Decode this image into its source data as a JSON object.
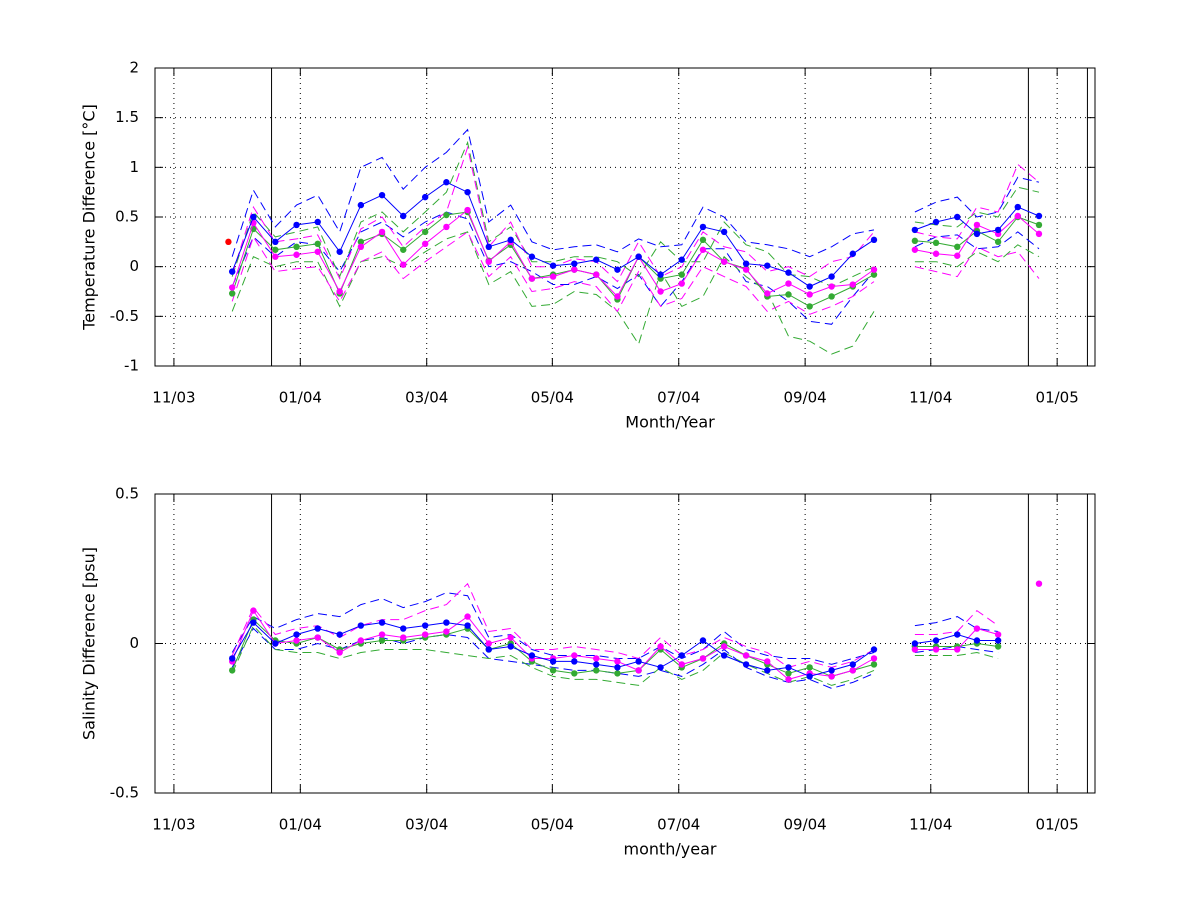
{
  "chart_data": [
    {
      "type": "line",
      "ylabel": "Temperature Difference [°C]",
      "xlabel": "Month/Year",
      "xlim": [
        2003.808,
        2005.05
      ],
      "ylim": [
        -1,
        2
      ],
      "xticks": [
        {
          "value": 2003.833,
          "label": "11/03"
        },
        {
          "value": 2004.0,
          "label": "01/04"
        },
        {
          "value": 2004.167,
          "label": "03/04"
        },
        {
          "value": 2004.333,
          "label": "05/04"
        },
        {
          "value": 2004.5,
          "label": "07/04"
        },
        {
          "value": 2004.667,
          "label": "09/04"
        },
        {
          "value": 2004.833,
          "label": "11/04"
        },
        {
          "value": 2005.0,
          "label": "01/05"
        }
      ],
      "yticks": [
        -1,
        -0.5,
        0,
        0.5,
        1,
        1.5,
        2
      ],
      "grid": true,
      "vlines": [
        2003.962,
        2004.962,
        2005.04
      ],
      "x": [
        2003.91,
        2003.938,
        2003.967,
        2003.995,
        2004.023,
        2004.052,
        2004.08,
        2004.108,
        2004.136,
        2004.165,
        2004.193,
        2004.221,
        2004.249,
        2004.278,
        2004.306,
        2004.334,
        2004.362,
        2004.391,
        2004.419,
        2004.447,
        2004.476,
        2004.504,
        2004.532,
        2004.56,
        2004.589,
        2004.617,
        2004.645,
        2004.673,
        2004.702,
        2004.73,
        2004.758,
        2004.786,
        2004.812,
        2004.84,
        2004.868,
        2004.894,
        2004.922,
        2004.948,
        2004.976
      ],
      "series": [
        {
          "color": "#0000ff",
          "dash": true,
          "values": [
            0.1,
            0.77,
            0.4,
            0.62,
            0.72,
            0.35,
            1.0,
            1.1,
            0.78,
            1.0,
            1.15,
            1.38,
            0.45,
            0.62,
            0.25,
            0.17,
            0.2,
            0.22,
            0.15,
            0.28,
            0.2,
            0.22,
            0.6,
            0.5,
            0.25,
            0.22,
            0.18,
            0.1,
            0.2,
            0.33,
            0.37,
            null,
            0.55,
            0.65,
            0.7,
            0.5,
            0.55,
            0.9,
            0.85
          ]
        },
        {
          "color": "#0000ff",
          "dash": true,
          "values": [
            -0.2,
            0.3,
            0.1,
            0.25,
            0.22,
            -0.05,
            0.35,
            0.45,
            0.3,
            0.45,
            0.55,
            0.48,
            0.0,
            0.05,
            -0.05,
            -0.18,
            -0.18,
            -0.1,
            -0.22,
            -0.08,
            -0.4,
            -0.15,
            0.18,
            0.18,
            -0.15,
            -0.2,
            -0.35,
            -0.55,
            -0.58,
            -0.3,
            -0.05,
            null,
            0.2,
            0.3,
            0.32,
            0.18,
            0.2,
            0.35,
            0.18
          ]
        },
        {
          "color": "#33aa33",
          "dash": true,
          "values": [
            -0.1,
            0.55,
            0.3,
            0.35,
            0.4,
            -0.1,
            0.45,
            0.55,
            0.35,
            0.55,
            0.75,
            1.25,
            0.25,
            0.4,
            0.05,
            0.05,
            0.1,
            0.1,
            0.05,
            -0.1,
            0.25,
            0.05,
            0.05,
            0.45,
            0.22,
            0.15,
            -0.08,
            -0.1,
            -0.2,
            -0.1,
            0.0,
            null,
            0.45,
            0.42,
            0.4,
            0.55,
            0.5,
            0.8,
            0.75
          ]
        },
        {
          "color": "#33aa33",
          "dash": true,
          "values": [
            -0.45,
            0.1,
            0.0,
            0.05,
            0.05,
            -0.4,
            0.05,
            0.1,
            0.0,
            0.15,
            0.28,
            0.35,
            -0.18,
            -0.05,
            -0.4,
            -0.38,
            -0.25,
            -0.28,
            -0.45,
            -0.78,
            -0.05,
            -0.4,
            -0.3,
            0.1,
            -0.1,
            -0.25,
            -0.7,
            -0.75,
            -0.88,
            -0.8,
            -0.45,
            null,
            0.05,
            0.05,
            0.0,
            0.15,
            0.05,
            0.22,
            0.1
          ]
        },
        {
          "color": "#ff00ff",
          "dash": true,
          "values": [
            -0.08,
            0.6,
            0.25,
            0.28,
            0.32,
            -0.12,
            0.38,
            0.5,
            0.2,
            0.4,
            0.55,
            1.2,
            0.2,
            0.45,
            0.0,
            0.0,
            0.08,
            0.05,
            -0.15,
            0.25,
            -0.1,
            0.0,
            0.35,
            0.2,
            0.15,
            -0.05,
            0.0,
            -0.1,
            0.05,
            0.1,
            0.35,
            null,
            0.35,
            0.3,
            0.28,
            0.6,
            0.55,
            1.03,
            0.85
          ]
        },
        {
          "color": "#ff00ff",
          "dash": true,
          "values": [
            -0.35,
            0.3,
            -0.05,
            -0.02,
            0.0,
            -0.35,
            0.05,
            0.15,
            -0.12,
            0.05,
            0.2,
            0.35,
            -0.1,
            0.1,
            -0.25,
            -0.22,
            -0.15,
            -0.2,
            -0.45,
            -0.05,
            -0.4,
            -0.32,
            0.0,
            -0.1,
            -0.2,
            -0.45,
            -0.35,
            -0.48,
            -0.4,
            -0.3,
            -0.15,
            null,
            0.0,
            -0.05,
            -0.1,
            0.2,
            0.1,
            0.15,
            -0.12
          ]
        },
        {
          "color": "#33aa33",
          "marker": true,
          "values": [
            -0.27,
            0.38,
            0.17,
            0.2,
            0.23,
            -0.27,
            0.25,
            0.33,
            0.17,
            0.35,
            0.52,
            0.55,
            0.06,
            0.22,
            -0.12,
            -0.08,
            -0.03,
            -0.08,
            -0.33,
            0.1,
            -0.12,
            -0.08,
            0.27,
            0.05,
            -0.02,
            -0.3,
            -0.28,
            -0.4,
            -0.3,
            -0.2,
            -0.08,
            null,
            0.26,
            0.24,
            0.2,
            0.36,
            0.25,
            0.5,
            0.42
          ]
        },
        {
          "color": "#ff00ff",
          "marker": true,
          "values": [
            -0.21,
            0.44,
            0.1,
            0.12,
            0.15,
            -0.25,
            0.2,
            0.35,
            0.02,
            0.23,
            0.4,
            0.57,
            0.05,
            0.25,
            -0.12,
            -0.1,
            -0.03,
            -0.08,
            -0.3,
            0.1,
            -0.25,
            -0.17,
            0.17,
            0.05,
            -0.03,
            -0.27,
            -0.17,
            -0.28,
            -0.2,
            -0.18,
            -0.03,
            null,
            0.17,
            0.13,
            0.11,
            0.42,
            0.33,
            0.51,
            0.33
          ]
        },
        {
          "color": "#0000ff",
          "marker": true,
          "values": [
            -0.05,
            0.5,
            0.25,
            0.42,
            0.45,
            0.15,
            0.62,
            0.72,
            0.51,
            0.7,
            0.85,
            0.75,
            0.2,
            0.27,
            0.1,
            0.01,
            0.03,
            0.07,
            -0.03,
            0.1,
            -0.08,
            0.07,
            0.4,
            0.35,
            0.03,
            0.01,
            -0.06,
            -0.2,
            -0.1,
            0.13,
            0.27,
            null,
            0.37,
            0.45,
            0.5,
            0.33,
            0.37,
            0.6,
            0.51
          ]
        },
        {
          "color": "#ff0000",
          "marker": true,
          "noline": true,
          "x": [
            2003.905
          ],
          "values": [
            0.25
          ]
        }
      ]
    },
    {
      "type": "line",
      "ylabel": "Salinity Difference [psu]",
      "xlabel": "month/year",
      "xlim": [
        2003.808,
        2005.05
      ],
      "ylim": [
        -0.5,
        0.5
      ],
      "xticks": [
        {
          "value": 2003.833,
          "label": "11/03"
        },
        {
          "value": 2004.0,
          "label": "01/04"
        },
        {
          "value": 2004.167,
          "label": "03/04"
        },
        {
          "value": 2004.333,
          "label": "05/04"
        },
        {
          "value": 2004.5,
          "label": "07/04"
        },
        {
          "value": 2004.667,
          "label": "09/04"
        },
        {
          "value": 2004.833,
          "label": "11/04"
        },
        {
          "value": 2005.0,
          "label": "01/05"
        }
      ],
      "yticks": [
        -0.5,
        0,
        0.5
      ],
      "grid": true,
      "vlines": [
        2003.962,
        2004.962,
        2005.04
      ],
      "x": [
        2003.91,
        2003.938,
        2003.967,
        2003.995,
        2004.023,
        2004.052,
        2004.08,
        2004.108,
        2004.136,
        2004.165,
        2004.193,
        2004.221,
        2004.249,
        2004.278,
        2004.306,
        2004.334,
        2004.362,
        2004.391,
        2004.419,
        2004.447,
        2004.476,
        2004.504,
        2004.532,
        2004.56,
        2004.589,
        2004.617,
        2004.645,
        2004.673,
        2004.702,
        2004.73,
        2004.758,
        2004.786,
        2004.812,
        2004.84,
        2004.868,
        2004.894,
        2004.922,
        2004.948,
        2004.976
      ],
      "series": [
        {
          "color": "#0000ff",
          "dash": true,
          "values": [
            -0.03,
            0.09,
            0.05,
            0.08,
            0.1,
            0.09,
            0.13,
            0.15,
            0.12,
            0.14,
            0.17,
            0.16,
            0.02,
            0.03,
            -0.02,
            -0.04,
            -0.04,
            -0.04,
            -0.05,
            -0.05,
            -0.01,
            -0.05,
            -0.02,
            0.04,
            -0.02,
            -0.04,
            -0.05,
            -0.05,
            -0.07,
            -0.05,
            -0.03,
            null,
            0.06,
            0.07,
            0.09,
            0.05,
            0.04,
            null,
            null
          ]
        },
        {
          "color": "#0000ff",
          "dash": true,
          "values": [
            -0.08,
            0.05,
            -0.02,
            -0.02,
            0.0,
            -0.02,
            0.01,
            0.02,
            0.0,
            0.02,
            0.03,
            0.02,
            -0.05,
            -0.06,
            -0.07,
            -0.08,
            -0.09,
            -0.09,
            -0.1,
            -0.11,
            -0.09,
            -0.11,
            -0.07,
            -0.02,
            -0.08,
            -0.11,
            -0.13,
            -0.12,
            -0.15,
            -0.13,
            -0.1,
            null,
            -0.03,
            -0.02,
            -0.01,
            -0.02,
            -0.03,
            null,
            null
          ]
        },
        {
          "color": "#33aa33",
          "dash": true,
          "values": [
            -0.1,
            0.06,
            -0.02,
            -0.03,
            -0.03,
            -0.05,
            -0.03,
            -0.02,
            -0.02,
            -0.02,
            -0.03,
            -0.04,
            -0.05,
            -0.04,
            -0.08,
            -0.11,
            -0.12,
            -0.12,
            -0.13,
            -0.14,
            -0.08,
            -0.12,
            -0.09,
            -0.03,
            -0.07,
            -0.1,
            -0.13,
            -0.11,
            -0.14,
            -0.12,
            -0.09,
            null,
            -0.04,
            -0.04,
            -0.04,
            -0.03,
            -0.05,
            null,
            null
          ]
        },
        {
          "color": "#ff00ff",
          "dash": true,
          "values": [
            -0.04,
            0.12,
            0.03,
            0.05,
            0.06,
            0.02,
            0.06,
            0.08,
            0.08,
            0.11,
            0.13,
            0.2,
            0.04,
            0.05,
            -0.02,
            -0.02,
            -0.01,
            -0.02,
            -0.03,
            -0.05,
            0.02,
            -0.04,
            -0.02,
            0.02,
            -0.01,
            -0.03,
            -0.08,
            -0.06,
            -0.08,
            -0.06,
            -0.02,
            null,
            0.03,
            0.03,
            0.04,
            0.11,
            0.06,
            null,
            null
          ]
        },
        {
          "color": "#33aa33",
          "marker": true,
          "values": [
            -0.09,
            0.08,
            0.01,
            0.0,
            0.02,
            -0.02,
            0.0,
            0.01,
            0.01,
            0.02,
            0.03,
            0.05,
            -0.02,
            0.0,
            -0.06,
            -0.09,
            -0.1,
            -0.09,
            -0.1,
            -0.09,
            -0.02,
            -0.08,
            -0.05,
            0.0,
            -0.04,
            -0.07,
            -0.1,
            -0.08,
            -0.11,
            -0.09,
            -0.07,
            null,
            -0.01,
            -0.01,
            -0.01,
            0.0,
            -0.01,
            null,
            null
          ]
        },
        {
          "color": "#ff00ff",
          "marker": true,
          "values": [
            -0.06,
            0.11,
            0.0,
            0.01,
            0.02,
            -0.03,
            0.01,
            0.03,
            0.02,
            0.03,
            0.04,
            0.09,
            0.0,
            0.02,
            -0.05,
            -0.05,
            -0.04,
            -0.05,
            -0.06,
            -0.09,
            -0.01,
            -0.07,
            -0.05,
            -0.01,
            -0.04,
            -0.06,
            -0.12,
            -0.1,
            -0.11,
            -0.09,
            -0.05,
            null,
            -0.02,
            -0.02,
            -0.02,
            0.05,
            0.03,
            null,
            0.2
          ]
        },
        {
          "color": "#0000ff",
          "marker": true,
          "values": [
            -0.05,
            0.07,
            0.0,
            0.03,
            0.05,
            0.03,
            0.06,
            0.07,
            0.05,
            0.06,
            0.07,
            0.06,
            -0.02,
            -0.01,
            -0.04,
            -0.06,
            -0.06,
            -0.07,
            -0.08,
            -0.06,
            -0.08,
            -0.04,
            0.01,
            -0.04,
            -0.07,
            -0.09,
            -0.08,
            -0.11,
            -0.09,
            -0.07,
            -0.02,
            null,
            0.0,
            0.01,
            0.03,
            0.01,
            0.01,
            null,
            null
          ]
        }
      ]
    }
  ]
}
